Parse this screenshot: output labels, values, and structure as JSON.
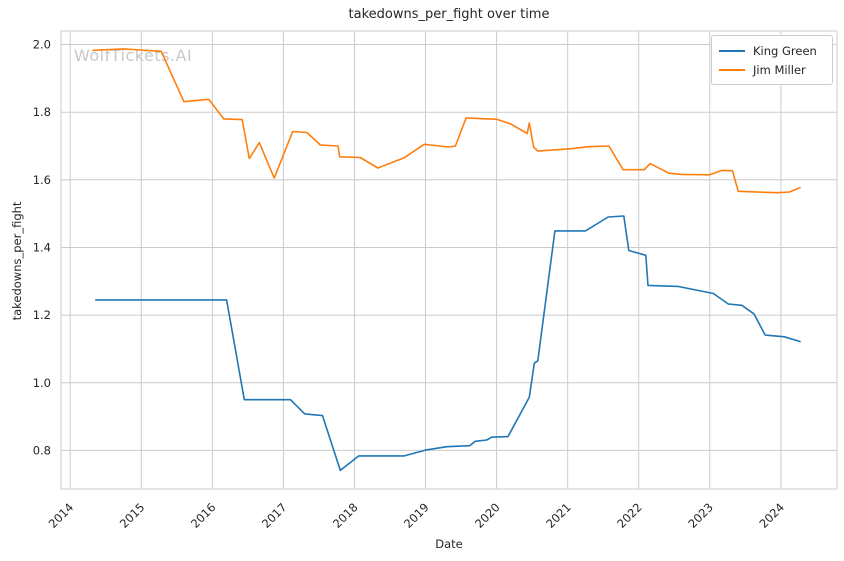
{
  "chart_data": {
    "type": "line",
    "title": "takedowns_per_fight over time",
    "xlabel": "Date",
    "ylabel": "takedowns_per_fight",
    "watermark": "WolfTickets.AI",
    "grid": true,
    "legend_position": "upper right",
    "x_ticks": [
      2014,
      2015,
      2016,
      2017,
      2018,
      2019,
      2020,
      2021,
      2022,
      2023,
      2024
    ],
    "y_ticks": [
      0.8,
      1.0,
      1.2,
      1.4,
      1.6,
      1.8,
      2.0
    ],
    "xlim": [
      2013.87,
      2024.79
    ],
    "ylim": [
      0.686,
      2.04
    ],
    "colors": {
      "grid": "#cccccc",
      "spine": "#cccccc",
      "text": "#262626",
      "watermark": "#c8c8c8",
      "background": "#ffffff"
    },
    "series": [
      {
        "name": "King Green",
        "color": "#1f77b4",
        "points": [
          [
            2014.36,
            1.245
          ],
          [
            2015.5,
            1.245
          ],
          [
            2016.2,
            1.245
          ],
          [
            2016.45,
            0.95
          ],
          [
            2017.1,
            0.95
          ],
          [
            2017.3,
            0.908
          ],
          [
            2017.55,
            0.903
          ],
          [
            2017.8,
            0.741
          ],
          [
            2018.06,
            0.784
          ],
          [
            2018.7,
            0.784
          ],
          [
            2019.0,
            0.801
          ],
          [
            2019.3,
            0.811
          ],
          [
            2019.62,
            0.814
          ],
          [
            2019.7,
            0.827
          ],
          [
            2019.86,
            0.831
          ],
          [
            2019.93,
            0.839
          ],
          [
            2020.16,
            0.841
          ],
          [
            2020.46,
            0.957
          ],
          [
            2020.53,
            1.058
          ],
          [
            2020.58,
            1.065
          ],
          [
            2020.82,
            1.449
          ],
          [
            2021.25,
            1.449
          ],
          [
            2021.57,
            1.49
          ],
          [
            2021.79,
            1.493
          ],
          [
            2021.86,
            1.391
          ],
          [
            2022.1,
            1.377
          ],
          [
            2022.13,
            1.288
          ],
          [
            2022.55,
            1.285
          ],
          [
            2023.05,
            1.264
          ],
          [
            2023.26,
            1.233
          ],
          [
            2023.45,
            1.229
          ],
          [
            2023.62,
            1.204
          ],
          [
            2023.78,
            1.141
          ],
          [
            2024.05,
            1.136
          ],
          [
            2024.27,
            1.122
          ]
        ]
      },
      {
        "name": "Jim Miller",
        "color": "#ff7f0e",
        "points": [
          [
            2014.32,
            1.983
          ],
          [
            2014.75,
            1.987
          ],
          [
            2015.28,
            1.98
          ],
          [
            2015.6,
            1.831
          ],
          [
            2015.95,
            1.838
          ],
          [
            2016.16,
            1.78
          ],
          [
            2016.42,
            1.778
          ],
          [
            2016.52,
            1.663
          ],
          [
            2016.66,
            1.71
          ],
          [
            2016.87,
            1.605
          ],
          [
            2017.13,
            1.743
          ],
          [
            2017.33,
            1.74
          ],
          [
            2017.52,
            1.703
          ],
          [
            2017.77,
            1.7
          ],
          [
            2017.79,
            1.668
          ],
          [
            2018.08,
            1.666
          ],
          [
            2018.33,
            1.635
          ],
          [
            2018.7,
            1.665
          ],
          [
            2018.98,
            1.705
          ],
          [
            2019.33,
            1.697
          ],
          [
            2019.42,
            1.7
          ],
          [
            2019.57,
            1.783
          ],
          [
            2020.0,
            1.779
          ],
          [
            2020.2,
            1.765
          ],
          [
            2020.43,
            1.737
          ],
          [
            2020.46,
            1.768
          ],
          [
            2020.52,
            1.697
          ],
          [
            2020.58,
            1.685
          ],
          [
            2021.05,
            1.692
          ],
          [
            2021.3,
            1.698
          ],
          [
            2021.58,
            1.7
          ],
          [
            2021.78,
            1.63
          ],
          [
            2022.08,
            1.63
          ],
          [
            2022.16,
            1.648
          ],
          [
            2022.42,
            1.62
          ],
          [
            2022.6,
            1.616
          ],
          [
            2023.0,
            1.615
          ],
          [
            2023.17,
            1.628
          ],
          [
            2023.32,
            1.627
          ],
          [
            2023.4,
            1.566
          ],
          [
            2023.95,
            1.562
          ],
          [
            2024.12,
            1.564
          ],
          [
            2024.27,
            1.577
          ]
        ]
      }
    ]
  }
}
